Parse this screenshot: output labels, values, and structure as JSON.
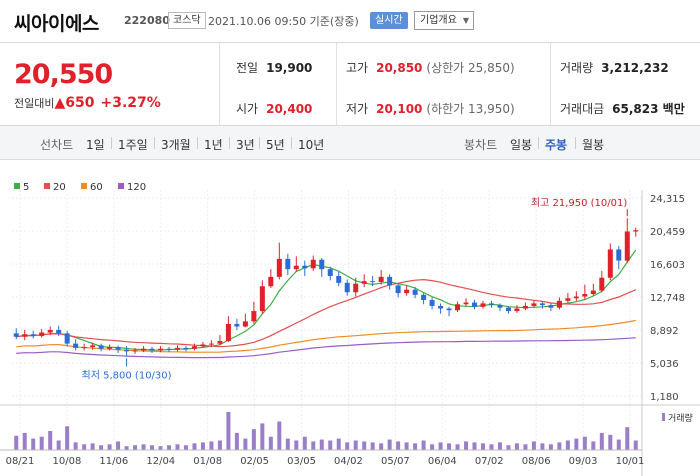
{
  "header": {
    "name": "씨아이에스",
    "code": "222080",
    "market": "코스닥",
    "datetime": "2021.10.06 09:50 기준(장중)",
    "realtime_badge": "실시간",
    "company_select": "기업개요"
  },
  "quote": {
    "price": "20,550",
    "change_label": "전일대비",
    "change_value": "▲650",
    "change_pct": "+3.27%",
    "prev_close_label": "전일",
    "prev_close": "19,900",
    "open_label": "시가",
    "open": "20,400",
    "high_label": "고가",
    "high": "20,850",
    "upper_limit": "(상한가 25,850)",
    "low_label": "저가",
    "low": "20,100",
    "lower_limit": "(하한가 13,950)",
    "volume_label": "거래량",
    "volume": "3,212,232",
    "amount_label": "거래대금",
    "amount": "65,823 백만"
  },
  "tabs": {
    "line_header": "선차트",
    "line_tabs": [
      "1일",
      "1주일",
      "3개월",
      "1년",
      "3년",
      "5년",
      "10년"
    ],
    "candle_header": "봉차트",
    "candle_tabs": [
      "일봉",
      "주봉",
      "월봉"
    ],
    "active_candle": "주봉"
  },
  "chart_data": {
    "type": "candlestick",
    "legend": [
      {
        "name": "5",
        "color": "#3cb043"
      },
      {
        "name": "20",
        "color": "#e05050"
      },
      {
        "name": "60",
        "color": "#f08c28"
      },
      {
        "name": "120",
        "color": "#9a5cc6"
      }
    ],
    "y_ticks": [
      "24,315",
      "20,459",
      "16,603",
      "12,748",
      "8,892",
      "5,036",
      "1,180"
    ],
    "ylim": [
      1180,
      24315
    ],
    "x_ticks": [
      "08/21",
      "10/08",
      "11/06",
      "12/04",
      "01/08",
      "02/05",
      "03/05",
      "04/02",
      "05/07",
      "06/04",
      "07/02",
      "08/06",
      "09/03",
      "10/01"
    ],
    "high_annotation": "최고 21,950 (10/01)",
    "low_annotation": "최저 5,800 (10/30)",
    "volume_label": "거래량",
    "up_color": "#e0202a",
    "down_color": "#2b6cd6",
    "candles": [
      [
        8500,
        8100,
        9100,
        7800
      ],
      [
        8100,
        8400,
        8900,
        7700
      ],
      [
        8400,
        8200,
        8800,
        7900
      ],
      [
        8200,
        8600,
        9000,
        8000
      ],
      [
        8600,
        8900,
        9300,
        8300
      ],
      [
        8900,
        8500,
        9400,
        8200
      ],
      [
        8500,
        7300,
        8800,
        7000
      ],
      [
        7300,
        6800,
        7800,
        6500
      ],
      [
        6800,
        6900,
        7300,
        6500
      ],
      [
        6900,
        7100,
        7400,
        6600
      ],
      [
        7100,
        6700,
        7300,
        6400
      ],
      [
        6700,
        6900,
        7200,
        6500
      ],
      [
        6900,
        6600,
        7100,
        6200
      ],
      [
        6600,
        6400,
        7000,
        5800
      ],
      [
        6400,
        6500,
        6800,
        6100
      ],
      [
        6500,
        6700,
        7000,
        6300
      ],
      [
        6700,
        6500,
        6900,
        6200
      ],
      [
        6500,
        6700,
        7000,
        6300
      ],
      [
        6700,
        6600,
        6900,
        6300
      ],
      [
        6600,
        6800,
        7100,
        6400
      ],
      [
        6800,
        6700,
        7000,
        6400
      ],
      [
        6700,
        7000,
        7300,
        6500
      ],
      [
        7000,
        7200,
        7500,
        6800
      ],
      [
        7200,
        7300,
        7700,
        6900
      ],
      [
        7300,
        7600,
        8300,
        7100
      ],
      [
        7600,
        9600,
        10500,
        7500
      ],
      [
        9600,
        9300,
        10200,
        8900
      ],
      [
        9300,
        9900,
        10800,
        9200
      ],
      [
        9900,
        11100,
        12200,
        9600
      ],
      [
        11100,
        14000,
        14700,
        10800
      ],
      [
        14000,
        15100,
        16000,
        13800
      ],
      [
        15100,
        17200,
        19100,
        14800
      ],
      [
        17200,
        16000,
        17800,
        15300
      ],
      [
        16000,
        16400,
        17500,
        15700
      ],
      [
        16400,
        16100,
        17000,
        15200
      ],
      [
        16100,
        17100,
        17600,
        15800
      ],
      [
        17100,
        16000,
        17300,
        15100
      ],
      [
        16000,
        15200,
        16300,
        14700
      ],
      [
        15200,
        14400,
        15700,
        14000
      ],
      [
        14400,
        13300,
        14800,
        12900
      ],
      [
        13300,
        14300,
        15000,
        12800
      ],
      [
        14300,
        14600,
        15400,
        13900
      ],
      [
        14600,
        14500,
        15200,
        14000
      ],
      [
        14500,
        15100,
        15900,
        14200
      ],
      [
        15100,
        14100,
        15400,
        13600
      ],
      [
        14100,
        13200,
        14400,
        12700
      ],
      [
        13200,
        13600,
        14100,
        12900
      ],
      [
        13600,
        13000,
        13900,
        12600
      ],
      [
        13000,
        12400,
        13200,
        11900
      ],
      [
        12400,
        11700,
        12700,
        11300
      ],
      [
        11700,
        11400,
        12000,
        10800
      ],
      [
        11400,
        11200,
        11600,
        10500
      ],
      [
        11200,
        11900,
        12200,
        11000
      ],
      [
        11900,
        12100,
        12600,
        11700
      ],
      [
        12100,
        11600,
        12400,
        11300
      ],
      [
        11600,
        12000,
        12300,
        11400
      ],
      [
        12000,
        11800,
        12300,
        11500
      ],
      [
        11800,
        11500,
        12000,
        11100
      ],
      [
        11500,
        11100,
        11700,
        10800
      ],
      [
        11100,
        11400,
        11800,
        10900
      ],
      [
        11400,
        11700,
        12100,
        11200
      ],
      [
        11700,
        12000,
        12300,
        11500
      ],
      [
        12000,
        11800,
        12200,
        11400
      ],
      [
        11800,
        11500,
        12000,
        11100
      ],
      [
        11500,
        12300,
        12700,
        11300
      ],
      [
        12300,
        12600,
        13200,
        12100
      ],
      [
        12600,
        12800,
        13400,
        12300
      ],
      [
        12800,
        13100,
        14200,
        12500
      ],
      [
        13100,
        13500,
        14300,
        12900
      ],
      [
        13500,
        15000,
        15800,
        13300
      ],
      [
        15000,
        18300,
        19000,
        14700
      ],
      [
        18300,
        17000,
        18700,
        16000
      ],
      [
        17000,
        20400,
        21950,
        16700
      ],
      [
        20400,
        20550,
        20850,
        19800
      ]
    ],
    "volumes": [
      15,
      18,
      12,
      14,
      20,
      10,
      25,
      8,
      6,
      7,
      5,
      6,
      9,
      4,
      5,
      6,
      5,
      4,
      5,
      6,
      5,
      7,
      8,
      9,
      10,
      40,
      18,
      12,
      22,
      28,
      14,
      30,
      12,
      10,
      14,
      9,
      11,
      10,
      12,
      8,
      10,
      9,
      8,
      7,
      11,
      9,
      8,
      7,
      10,
      6,
      8,
      7,
      6,
      9,
      8,
      7,
      6,
      8,
      5,
      7,
      6,
      9,
      7,
      6,
      8,
      10,
      12,
      14,
      9,
      18,
      16,
      11,
      24,
      10
    ]
  }
}
